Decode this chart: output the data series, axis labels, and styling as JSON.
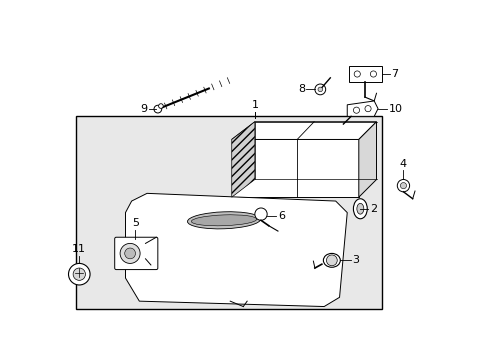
{
  "bg_color": "#ffffff",
  "box_bg": "#e8e8e8",
  "line_color": "#000000",
  "font_size": 8,
  "fig_width": 4.89,
  "fig_height": 3.6,
  "dpi": 100
}
